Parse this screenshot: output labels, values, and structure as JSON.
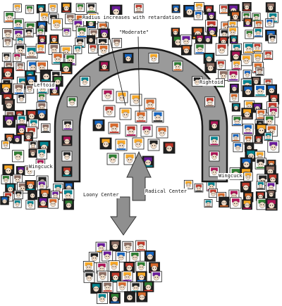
{
  "labels": {
    "radius_note": "Radius increases with retardation",
    "moderate": "\"Moderate\"",
    "leftoid": "Leftoid",
    "rightoid": "Rightoid",
    "wingcuck_left": "Wingcuck",
    "wingcuck_right": "Wingcuck",
    "loony_center": "Loony Center",
    "radical_center": "Radical Center"
  },
  "colors": {
    "arch_fill": "#9a9a9a",
    "arch_stroke": "#1a1a1a",
    "arrow_fill": "#8f8f8f",
    "arrow_stroke": "#333333",
    "avatar_face": "#f2ddc8",
    "avatar_orange": "#d8692a",
    "avatar_frame": "#1a1a1a"
  },
  "icons": {
    "avatar": "chibi-face-avatar-icon",
    "flag": "pride-flag-icon"
  }
}
